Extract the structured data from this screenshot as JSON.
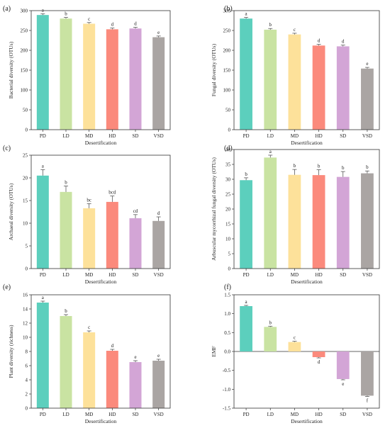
{
  "colors": [
    "#5ccfbd",
    "#c9e3a2",
    "#fde19a",
    "#fb8a7c",
    "#d3a5d6",
    "#aaa5a3"
  ],
  "chart_data": [
    {
      "panel": "(a)",
      "type": "bar",
      "categories": [
        "PD",
        "LD",
        "MD",
        "HD",
        "SD",
        "VSD"
      ],
      "values": [
        289,
        280,
        267,
        253,
        255,
        233
      ],
      "errors": [
        3,
        3,
        3,
        3,
        3,
        3
      ],
      "letters": [
        "a",
        "b",
        "c",
        "d",
        "d",
        "e"
      ],
      "xlabel": "Desertification",
      "ylabel": "Bacterial diversity (OTUs)",
      "ylim": [
        0,
        300
      ],
      "yticks": [
        0,
        50,
        100,
        150,
        200,
        250,
        300
      ]
    },
    {
      "panel": "(b)",
      "type": "bar",
      "categories": [
        "PD",
        "LD",
        "MD",
        "HD",
        "SD",
        "VSD"
      ],
      "values": [
        280,
        252,
        240,
        212,
        210,
        154
      ],
      "errors": [
        3,
        3,
        3,
        3,
        3,
        3
      ],
      "letters": [
        "a",
        "b",
        "c",
        "d",
        "d",
        "e"
      ],
      "xlabel": "Desertification",
      "ylabel": "Fungal diversity (OTUs)",
      "ylim": [
        0,
        300
      ],
      "yticks": [
        0,
        50,
        100,
        150,
        200,
        250,
        300
      ]
    },
    {
      "panel": "(c)",
      "type": "bar",
      "categories": [
        "PD",
        "LD",
        "MD",
        "HD",
        "SD",
        "VSD"
      ],
      "values": [
        20.5,
        16.9,
        13.3,
        14.7,
        11.1,
        10.5
      ],
      "errors": [
        1.3,
        1.3,
        1.0,
        1.3,
        0.8,
        0.9
      ],
      "letters": [
        "a",
        "b",
        "bc",
        "bcd",
        "cd",
        "d"
      ],
      "xlabel": "Desertification",
      "ylabel": "Archaeal diversity (OTUs)",
      "ylim": [
        0,
        25
      ],
      "yticks": [
        0,
        5,
        10,
        15,
        20,
        25
      ]
    },
    {
      "panel": "(d)",
      "type": "bar",
      "categories": [
        "PD",
        "LD",
        "MD",
        "HD",
        "SD",
        "VSD"
      ],
      "values": [
        29.7,
        37.3,
        31.5,
        31.4,
        30.8,
        32.0
      ],
      "errors": [
        0.8,
        0.8,
        1.8,
        1.8,
        1.8,
        0.8
      ],
      "letters": [
        "b",
        "a",
        "b",
        "b",
        "b",
        "b"
      ],
      "xlabel": "Desertification",
      "ylabel": "Arbuscular mycorrhizal fungal diversity (OTUs)",
      "ylim": [
        0,
        40
      ],
      "yticks": [
        0,
        5,
        10,
        15,
        20,
        25,
        30,
        35,
        40
      ]
    },
    {
      "panel": "(e)",
      "type": "bar",
      "categories": [
        "PD",
        "LD",
        "MD",
        "HD",
        "SD",
        "VSD"
      ],
      "values": [
        14.9,
        13.0,
        10.7,
        8.1,
        6.5,
        6.7
      ],
      "errors": [
        0.2,
        0.2,
        0.2,
        0.2,
        0.2,
        0.2
      ],
      "letters": [
        "a",
        "b",
        "c",
        "d",
        "e",
        "e"
      ],
      "xlabel": "Desertification",
      "ylabel": "Plant diversity (richness)",
      "ylim": [
        0,
        16
      ],
      "yticks": [
        0,
        2,
        4,
        6,
        8,
        10,
        12,
        14,
        16
      ]
    },
    {
      "panel": "(f)",
      "type": "bar",
      "categories": [
        "PD",
        "LD",
        "MD",
        "HD",
        "SD",
        "VSD"
      ],
      "values": [
        1.2,
        0.65,
        0.25,
        -0.15,
        -0.73,
        -1.17
      ],
      "errors": [
        0.02,
        0.02,
        0.02,
        0.02,
        0.02,
        0.02
      ],
      "letters": [
        "a",
        "b",
        "c",
        "d",
        "e",
        "f"
      ],
      "xlabel": "Desertification",
      "ylabel": "EMF",
      "ylim": [
        -1.5,
        1.5
      ],
      "yticks": [
        -1.5,
        -1.0,
        -0.5,
        0.0,
        0.5,
        1.0,
        1.5
      ],
      "tick_decimals": 1
    }
  ]
}
